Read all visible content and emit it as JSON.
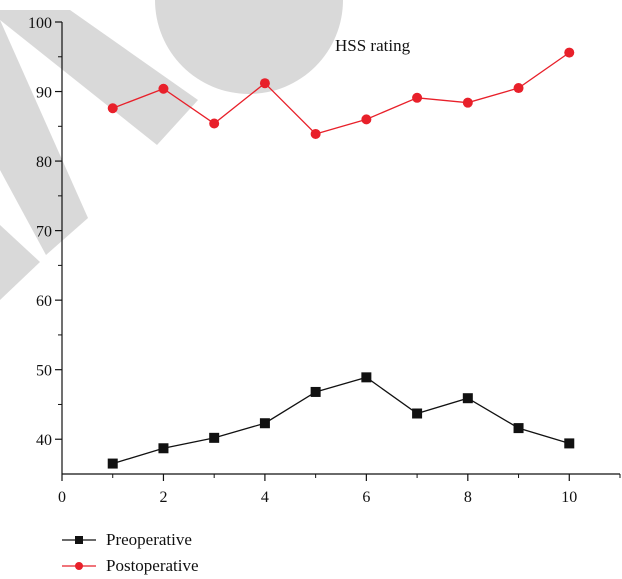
{
  "chart_data": {
    "type": "line",
    "annotation": "HSS rating",
    "xlim": [
      0,
      11
    ],
    "ylim": [
      35,
      100
    ],
    "x_ticks": [
      0,
      2,
      4,
      6,
      8,
      10
    ],
    "y_ticks": [
      40,
      50,
      60,
      70,
      80,
      90,
      100
    ],
    "x_tick_labels": [
      "0",
      "2",
      "4",
      "6",
      "8",
      "10"
    ],
    "y_tick_labels": [
      "40",
      "50",
      "60",
      "70",
      "80",
      "90",
      "100"
    ],
    "grid": false,
    "legend_position": "bottom-left",
    "x": [
      1,
      2,
      3,
      4,
      5,
      6,
      7,
      8,
      9,
      10
    ],
    "series": [
      {
        "name": "Preoperative",
        "color": "#111111",
        "marker": "square",
        "values": [
          36.5,
          38.7,
          40.2,
          42.3,
          46.8,
          48.9,
          43.7,
          45.9,
          41.6,
          39.4
        ]
      },
      {
        "name": "Postoperative",
        "color": "#e8202a",
        "marker": "circle",
        "values": [
          87.6,
          90.4,
          85.4,
          91.2,
          83.9,
          86.0,
          89.1,
          88.4,
          90.5,
          95.6
        ]
      }
    ]
  },
  "watermark_color": "#d9d9d9"
}
